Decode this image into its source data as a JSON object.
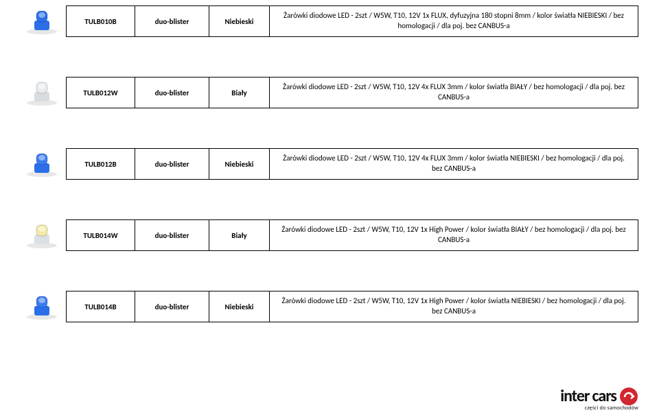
{
  "rows": [
    {
      "code": "TULB010B",
      "pack": "duo-blister",
      "color_name": "Niebieski",
      "desc": "Żarówki diodowe LED - 2szt / W5W, T10, 12V 1x FLUX, dyfuzyjna 180 stopni 8mm /  kolor światła NIEBIESKI / bez homologacji / dla poj. bez CANBUS-a",
      "led_color": "#2a6fe8",
      "base_color": "#2a6fe8"
    },
    {
      "code": "TULB012W",
      "pack": "duo-blister",
      "color_name": "Biały",
      "desc": "Żarówki diodowe LED - 2szt / W5W, T10, 12V 4x FLUX 3mm /  kolor światła BIAŁY / bez homologacji / dla poj. bez CANBUS-a",
      "led_color": "#e8ecef",
      "base_color": "#d8dde2"
    },
    {
      "code": "TULB012B",
      "pack": "duo-blister",
      "color_name": "Niebieski",
      "desc": "Żarówki diodowe LED - 2szt / W5W, T10, 12V 4x FLUX 3mm /  kolor światła NIEBIESKI / bez homologacji / dla poj. bez CANBUS-a",
      "led_color": "#3a7af0",
      "base_color": "#2a6fe8"
    },
    {
      "code": "TULB014W",
      "pack": "duo-blister",
      "color_name": "Biały",
      "desc": "Żarówki diodowe LED - 2szt / W5W, T10, 12V 1x High Power /  kolor światła BIAŁY / bez homologacji / dla poj. bez CANBUS-a",
      "led_color": "#f4e9a8",
      "base_color": "#dcdfe3"
    },
    {
      "code": "TULB014B",
      "pack": "duo-blister",
      "color_name": "Niebieski",
      "desc": "Żarówki diodowe LED - 2szt / W5W, T10, 12V 1x High Power /  kolor światła NIEBIESKI / bez homologacji / dla poj. bez CANBUS-a",
      "led_color": "#3a7af0",
      "base_color": "#2a6fe8"
    }
  ],
  "footer": {
    "brand_a": "inter",
    "brand_b": "cars",
    "tagline": "części do samochodów",
    "badge_bg": "#d22630",
    "badge_fg": "#ffffff"
  }
}
